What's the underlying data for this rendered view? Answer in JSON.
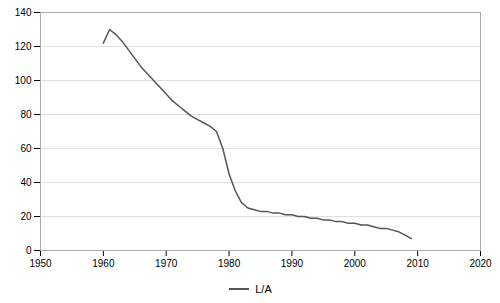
{
  "chart_data": {
    "type": "line",
    "x": [
      1960,
      1961,
      1962,
      1963,
      1964,
      1965,
      1966,
      1967,
      1968,
      1969,
      1970,
      1971,
      1972,
      1973,
      1974,
      1975,
      1976,
      1977,
      1978,
      1979,
      1980,
      1981,
      1982,
      1983,
      1984,
      1985,
      1986,
      1987,
      1988,
      1989,
      1990,
      1991,
      1992,
      1993,
      1994,
      1995,
      1996,
      1997,
      1998,
      1999,
      2000,
      2001,
      2002,
      2003,
      2004,
      2005,
      2006,
      2007,
      2008,
      2009
    ],
    "series": [
      {
        "name": "L/A",
        "color": "#555555",
        "values": [
          122,
          130,
          127,
          123,
          118,
          113,
          108,
          104,
          100,
          96,
          92,
          88,
          85,
          82,
          79,
          77,
          75,
          73,
          70,
          60,
          45,
          35,
          28,
          25,
          24,
          23,
          23,
          22,
          22,
          21,
          21,
          20,
          20,
          19,
          19,
          18,
          18,
          17,
          17,
          16,
          16,
          15,
          15,
          14,
          13,
          13,
          12,
          11,
          9,
          7
        ]
      }
    ],
    "xlim": [
      1950,
      2020
    ],
    "ylim": [
      0,
      140
    ],
    "xticks": [
      1950,
      1960,
      1970,
      1980,
      1990,
      2000,
      2010,
      2020
    ],
    "yticks": [
      0,
      20,
      40,
      60,
      80,
      100,
      120,
      140
    ],
    "grid": true,
    "legend": "bottom"
  }
}
